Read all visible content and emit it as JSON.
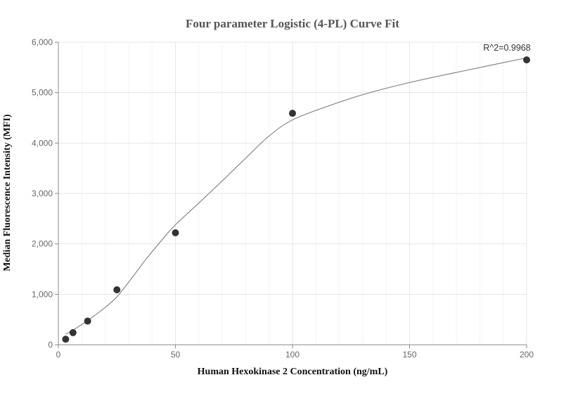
{
  "chart_data": {
    "type": "scatter",
    "title": "Four parameter Logistic (4-PL) Curve Fit",
    "xlabel": "Human Hexokinase 2 Concentration (ng/mL)",
    "ylabel": "Median Fluorescence Intensity (MFI)",
    "xlim": [
      0,
      200
    ],
    "ylim": [
      0,
      6000
    ],
    "x_ticks": [
      0,
      50,
      100,
      150,
      200
    ],
    "x_tick_labels": [
      "0",
      "50",
      "100",
      "150",
      "200"
    ],
    "y_ticks": [
      0,
      1000,
      2000,
      3000,
      4000,
      5000,
      6000
    ],
    "y_tick_labels": [
      "0",
      "1,000",
      "2,000",
      "3,000",
      "4,000",
      "5,000",
      "6,000"
    ],
    "grid": true,
    "series": [
      {
        "points": [
          {
            "x": 3.125,
            "y": 110
          },
          {
            "x": 6.25,
            "y": 240
          },
          {
            "x": 12.5,
            "y": 470
          },
          {
            "x": 25,
            "y": 1090
          },
          {
            "x": 50,
            "y": 2220
          },
          {
            "x": 100,
            "y": 4590
          },
          {
            "x": 200,
            "y": 5650
          }
        ],
        "color": "#333333"
      }
    ],
    "fit_curve": {
      "model": "4PL",
      "points": [
        {
          "x": 3.125,
          "y": 210
        },
        {
          "x": 6.25,
          "y": 290
        },
        {
          "x": 12.5,
          "y": 480
        },
        {
          "x": 20,
          "y": 740
        },
        {
          "x": 25,
          "y": 950
        },
        {
          "x": 30,
          "y": 1240
        },
        {
          "x": 37.5,
          "y": 1700
        },
        {
          "x": 45,
          "y": 2120
        },
        {
          "x": 50,
          "y": 2380
        },
        {
          "x": 60,
          "y": 2810
        },
        {
          "x": 70,
          "y": 3250
        },
        {
          "x": 80,
          "y": 3700
        },
        {
          "x": 90,
          "y": 4140
        },
        {
          "x": 100,
          "y": 4460
        },
        {
          "x": 115,
          "y": 4730
        },
        {
          "x": 130,
          "y": 4960
        },
        {
          "x": 150,
          "y": 5200
        },
        {
          "x": 175,
          "y": 5450
        },
        {
          "x": 200,
          "y": 5690
        }
      ],
      "color": "#888888"
    },
    "annotations": [
      {
        "text": "R^2=0.9968",
        "x": 200,
        "y": 5650,
        "position": "above-left"
      }
    ]
  }
}
